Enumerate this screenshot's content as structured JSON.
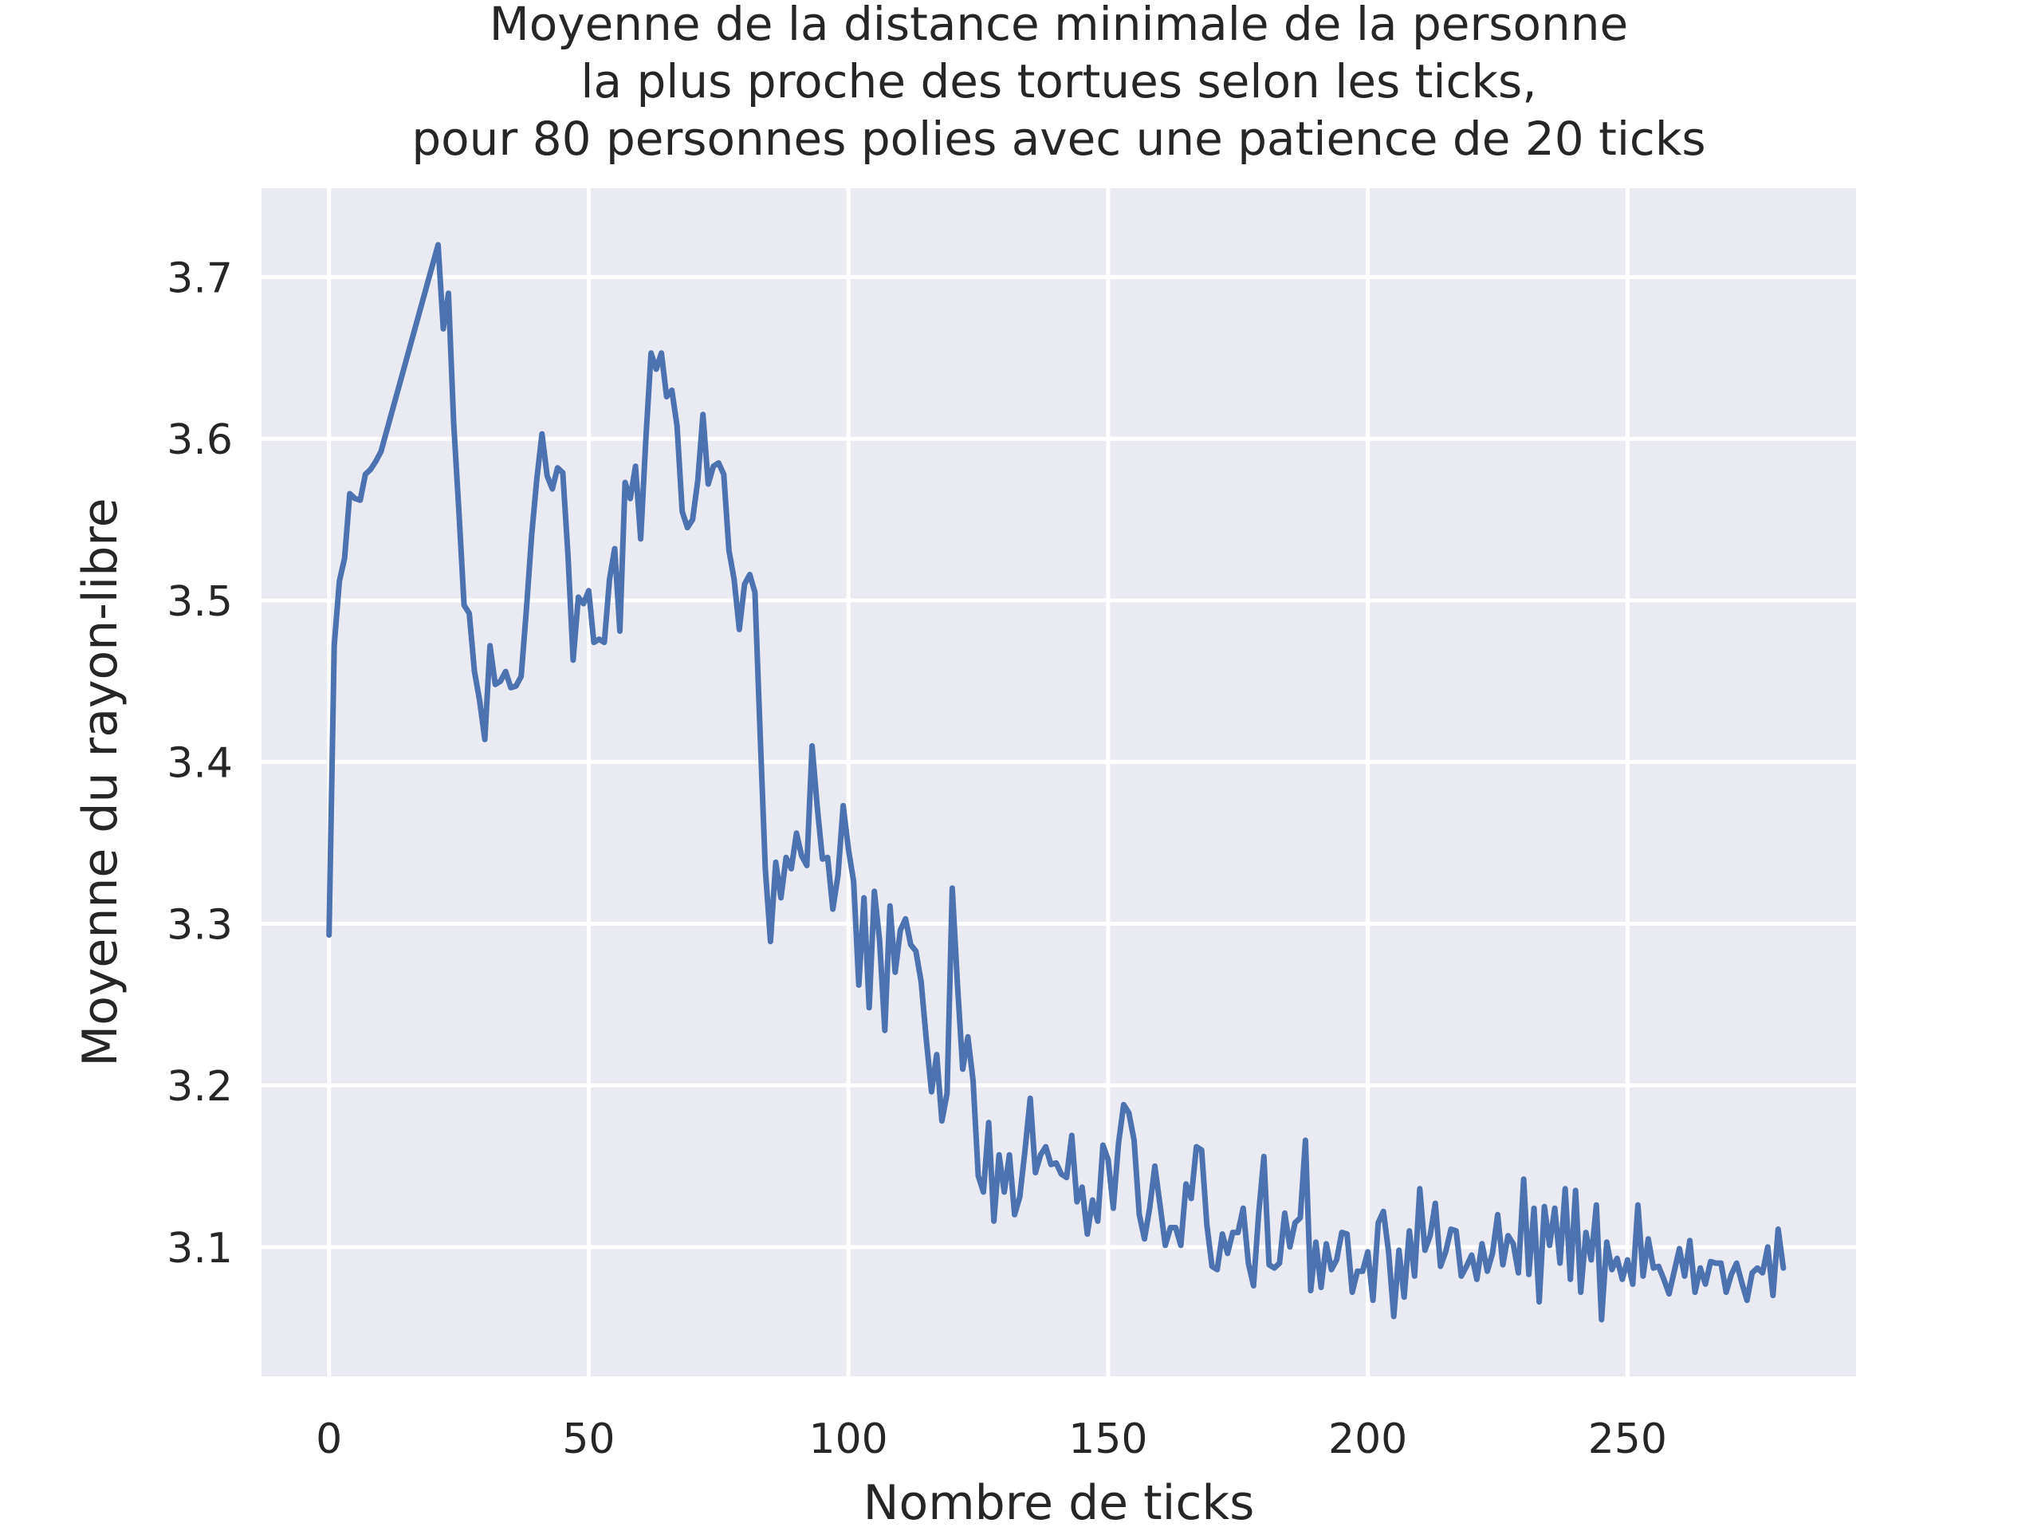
{
  "chart_data": {
    "type": "line",
    "title_lines": [
      "Moyenne de la distance minimale de la personne",
      "la plus proche des tortues selon les ticks,",
      "pour 80 personnes polies avec une patience de 20 ticks"
    ],
    "xlabel": "Nombre de ticks",
    "ylabel": "Moyenne du rayon-libre",
    "xlim": [
      -13,
      294
    ],
    "ylim": [
      3.02,
      3.755
    ],
    "x_ticks": [
      0,
      50,
      100,
      150,
      200,
      250
    ],
    "x_tick_labels": [
      "0",
      "50",
      "100",
      "150",
      "200",
      "250"
    ],
    "y_ticks": [
      3.1,
      3.2,
      3.3,
      3.4,
      3.5,
      3.6,
      3.7
    ],
    "y_tick_labels": [
      "3.1",
      "3.2",
      "3.3",
      "3.4",
      "3.5",
      "3.6",
      "3.7"
    ],
    "grid": true,
    "background": "#eaeaf2",
    "series": [
      {
        "color": "#4c72b0",
        "x": [
          0,
          1,
          2,
          3,
          4,
          5,
          6,
          7,
          8,
          9,
          10,
          21,
          22,
          23,
          24,
          25,
          26,
          27,
          28,
          29,
          30,
          31,
          32,
          33,
          34,
          35,
          36,
          37,
          38,
          39,
          40,
          41,
          42,
          43,
          44,
          45,
          46,
          47,
          48,
          49,
          50,
          51,
          52,
          53,
          54,
          55,
          56,
          57,
          58,
          59,
          60,
          61,
          62,
          63,
          64,
          65,
          66,
          67,
          68,
          69,
          70,
          71,
          72,
          73,
          74,
          75,
          76,
          77,
          78,
          79,
          80,
          81,
          82,
          83,
          84,
          85,
          86,
          87,
          88,
          89,
          90,
          91,
          92,
          93,
          94,
          95,
          96,
          97,
          98,
          99,
          100,
          101,
          102,
          103,
          104,
          105,
          106,
          107,
          108,
          109,
          110,
          111,
          112,
          113,
          114,
          115,
          116,
          117,
          118,
          119,
          120,
          121,
          122,
          123,
          124,
          125,
          126,
          127,
          128,
          129,
          130,
          131,
          132,
          133,
          134,
          135,
          136,
          137,
          138,
          139,
          140,
          141,
          142,
          143,
          144,
          145,
          146,
          147,
          148,
          149,
          150,
          151,
          152,
          153,
          154,
          155,
          156,
          157,
          158,
          159,
          160,
          161,
          162,
          163,
          164,
          165,
          166,
          167,
          168,
          169,
          170,
          171,
          172,
          173,
          174,
          175,
          176,
          177,
          178,
          179,
          180,
          181,
          182,
          183,
          184,
          185,
          186,
          187,
          188,
          189,
          190,
          191,
          192,
          193,
          194,
          195,
          196,
          197,
          198,
          199,
          200,
          201,
          202,
          203,
          204,
          205,
          206,
          207,
          208,
          209,
          210,
          211,
          212,
          213,
          214,
          215,
          216,
          217,
          218,
          219,
          220,
          221,
          222,
          223,
          224,
          225,
          226,
          227,
          228,
          229,
          230,
          231,
          232,
          233,
          234,
          235,
          236,
          237,
          238,
          239,
          240,
          241,
          242,
          243,
          244,
          245,
          246,
          247,
          248,
          249,
          250,
          251,
          252,
          253,
          254,
          255,
          256,
          257,
          258,
          259,
          260,
          261,
          262,
          263,
          264,
          265,
          266,
          267,
          268,
          269,
          270,
          271,
          272,
          273,
          274,
          275,
          276,
          277,
          278,
          279,
          280
        ],
        "y": [
          3.293,
          3.472,
          3.512,
          3.526,
          3.566,
          3.563,
          3.562,
          3.578,
          3.581,
          3.586,
          3.592,
          3.72,
          3.668,
          3.69,
          3.61,
          3.555,
          3.497,
          3.492,
          3.456,
          3.438,
          3.414,
          3.472,
          3.448,
          3.45,
          3.456,
          3.446,
          3.447,
          3.453,
          3.494,
          3.54,
          3.575,
          3.603,
          3.577,
          3.569,
          3.582,
          3.579,
          3.528,
          3.463,
          3.502,
          3.498,
          3.506,
          3.474,
          3.476,
          3.474,
          3.513,
          3.532,
          3.481,
          3.573,
          3.563,
          3.583,
          3.538,
          3.6,
          3.653,
          3.643,
          3.653,
          3.626,
          3.63,
          3.608,
          3.555,
          3.545,
          3.55,
          3.574,
          3.615,
          3.572,
          3.583,
          3.585,
          3.578,
          3.531,
          3.513,
          3.482,
          3.51,
          3.516,
          3.505,
          3.418,
          3.334,
          3.289,
          3.338,
          3.316,
          3.341,
          3.334,
          3.356,
          3.342,
          3.336,
          3.41,
          3.372,
          3.34,
          3.341,
          3.309,
          3.33,
          3.373,
          3.346,
          3.326,
          3.262,
          3.316,
          3.248,
          3.32,
          3.29,
          3.234,
          3.311,
          3.27,
          3.296,
          3.303,
          3.287,
          3.283,
          3.264,
          3.228,
          3.196,
          3.219,
          3.178,
          3.195,
          3.322,
          3.262,
          3.21,
          3.23,
          3.203,
          3.144,
          3.134,
          3.177,
          3.116,
          3.157,
          3.134,
          3.157,
          3.12,
          3.131,
          3.16,
          3.192,
          3.146,
          3.157,
          3.162,
          3.151,
          3.152,
          3.145,
          3.143,
          3.169,
          3.128,
          3.137,
          3.108,
          3.129,
          3.116,
          3.163,
          3.154,
          3.124,
          3.164,
          3.188,
          3.183,
          3.166,
          3.12,
          3.105,
          3.124,
          3.15,
          3.126,
          3.101,
          3.112,
          3.112,
          3.101,
          3.139,
          3.13,
          3.162,
          3.16,
          3.114,
          3.088,
          3.086,
          3.108,
          3.096,
          3.109,
          3.109,
          3.124,
          3.09,
          3.076,
          3.121,
          3.156,
          3.089,
          3.087,
          3.09,
          3.121,
          3.1,
          3.115,
          3.118,
          3.166,
          3.073,
          3.103,
          3.075,
          3.102,
          3.086,
          3.092,
          3.109,
          3.108,
          3.072,
          3.085,
          3.085,
          3.097,
          3.067,
          3.115,
          3.122,
          3.097,
          3.057,
          3.098,
          3.069,
          3.11,
          3.082,
          3.136,
          3.098,
          3.107,
          3.127,
          3.088,
          3.097,
          3.111,
          3.11,
          3.082,
          3.088,
          3.095,
          3.08,
          3.102,
          3.085,
          3.096,
          3.12,
          3.089,
          3.107,
          3.102,
          3.084,
          3.142,
          3.083,
          3.124,
          3.066,
          3.125,
          3.101,
          3.124,
          3.09,
          3.136,
          3.08,
          3.135,
          3.072,
          3.109,
          3.092,
          3.126,
          3.055,
          3.103,
          3.086,
          3.093,
          3.08,
          3.092,
          3.077,
          3.126,
          3.082,
          3.105,
          3.087,
          3.088,
          3.08,
          3.071,
          3.085,
          3.099,
          3.082,
          3.104,
          3.072,
          3.087,
          3.077,
          3.091,
          3.09,
          3.09,
          3.072,
          3.083,
          3.09,
          3.078,
          3.067,
          3.084,
          3.087,
          3.084,
          3.1,
          3.07,
          3.111,
          3.087
        ]
      }
    ]
  }
}
